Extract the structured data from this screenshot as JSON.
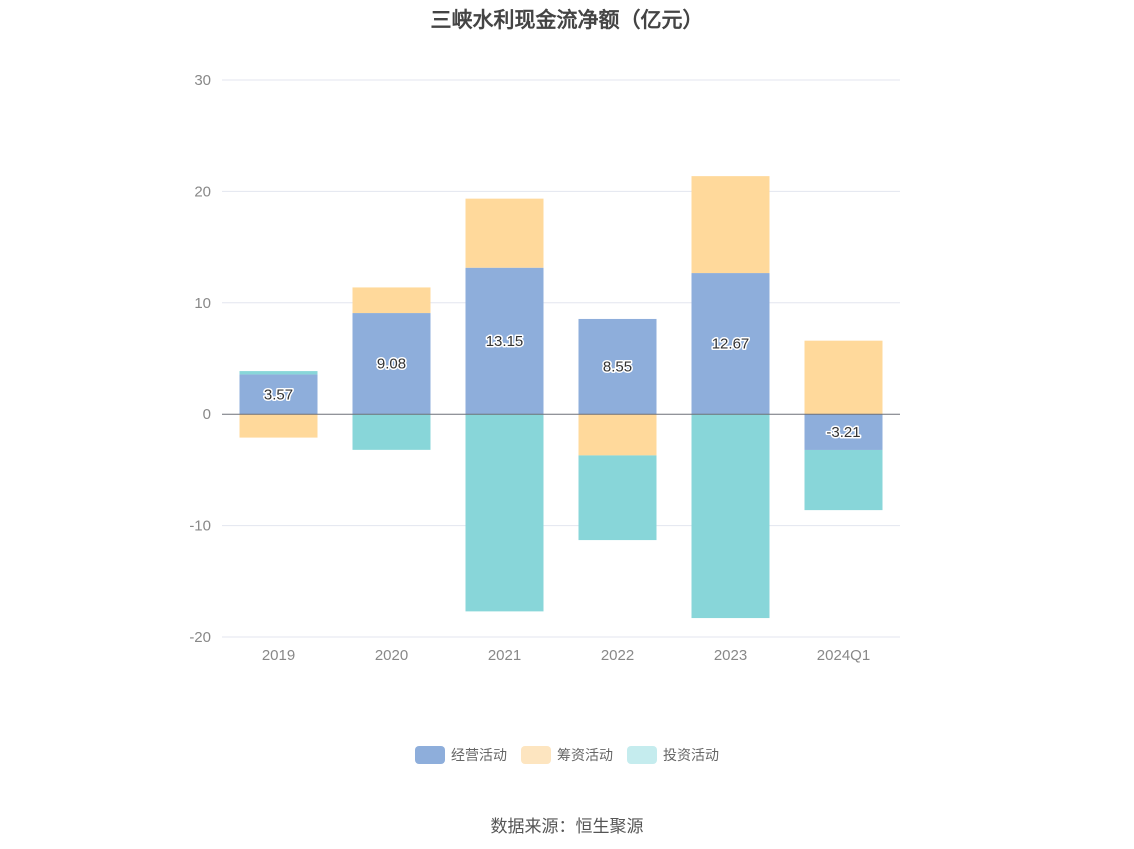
{
  "chart_data": {
    "type": "bar",
    "stacked": true,
    "title": "三峡水利现金流净额（亿元）",
    "categories": [
      "2019",
      "2020",
      "2021",
      "2022",
      "2023",
      "2024Q1"
    ],
    "series": [
      {
        "name": "经营活动",
        "color": "#8eaedb",
        "values": [
          3.57,
          9.08,
          13.15,
          8.55,
          12.67,
          -3.21
        ],
        "labels": [
          "3.57",
          "9.08",
          "13.15",
          "8.55",
          "12.67",
          "-3.21"
        ]
      },
      {
        "name": "筹资活动",
        "color": "#ffd99b",
        "values": [
          -2.1,
          2.3,
          6.2,
          -3.7,
          8.7,
          6.6
        ]
      },
      {
        "name": "投资活动",
        "color": "#88d6d9",
        "values": [
          0.3,
          -3.2,
          -17.7,
          -7.6,
          -18.3,
          -5.4
        ]
      }
    ],
    "legend_colors": [
      "#8eaedb",
      "#fde5c0",
      "#c5ecee"
    ],
    "ylim": [
      -20,
      30
    ],
    "yticks": [
      30,
      20,
      10,
      0,
      -10,
      -20
    ],
    "source": "数据来源：恒生聚源"
  }
}
